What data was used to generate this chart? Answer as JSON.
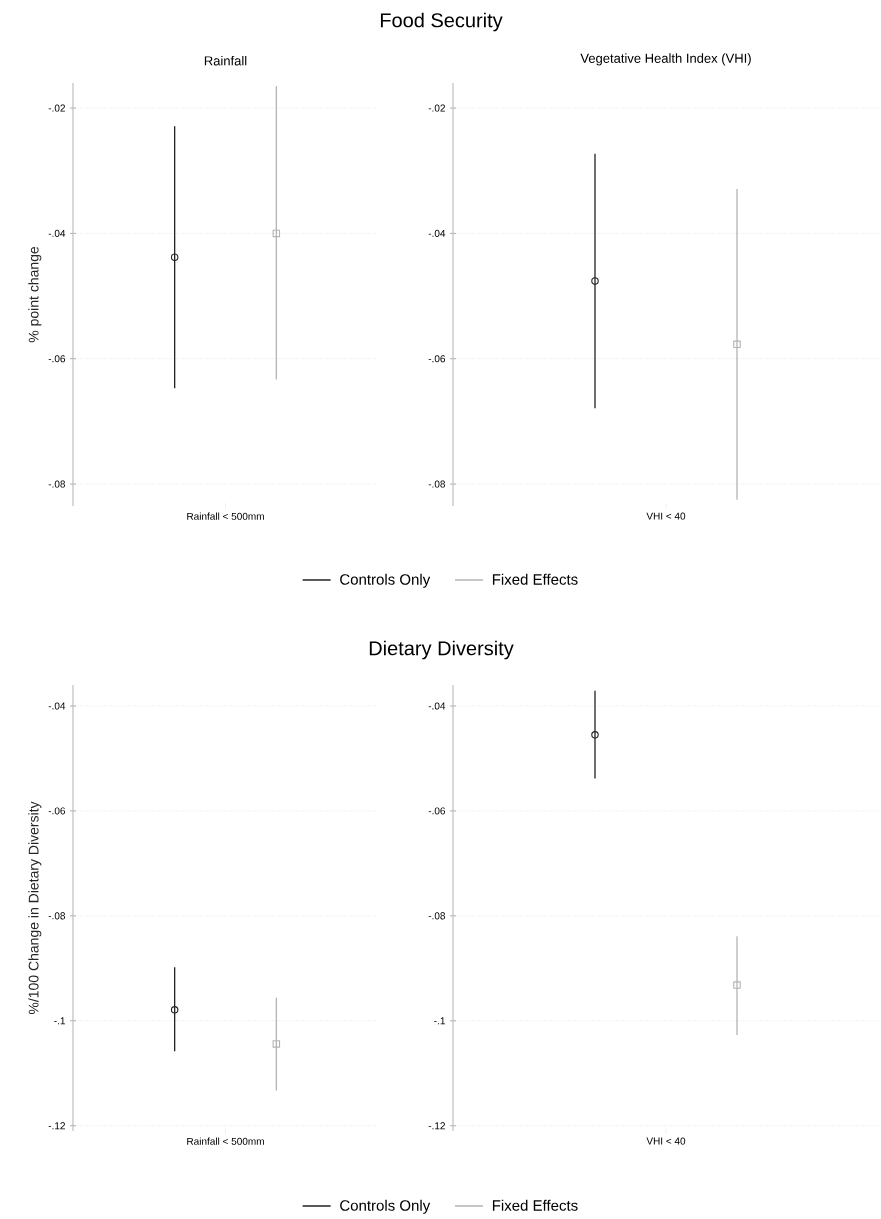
{
  "chart_data": [
    {
      "type": "scatter",
      "annotations": [
        "Food Security"
      ],
      "title": "Rainfall",
      "ylabel": "% point change",
      "categories": [
        "Rainfall < 500mm"
      ],
      "series": [
        {
          "name": "Controls Only",
          "color": "#222222",
          "marker": "circle",
          "values": [
            -0.0438
          ],
          "errors": [
            [
              -0.0647,
              -0.0229
            ]
          ]
        },
        {
          "name": "Fixed Effects",
          "color": "#b4b4b4",
          "marker": "square",
          "values": [
            -0.04
          ],
          "errors": [
            [
              -0.0633,
              -0.0165
            ]
          ]
        }
      ],
      "ylim": [
        -0.0835,
        -0.016
      ],
      "yticks": [
        {
          "value": -0.08,
          "label": "-.08"
        },
        {
          "value": -0.06,
          "label": "-.06"
        },
        {
          "value": -0.04,
          "label": "-.04"
        },
        {
          "value": -0.02,
          "label": "-.02"
        }
      ],
      "grid": "y",
      "legend": "bottom"
    },
    {
      "type": "scatter",
      "title": "Vegetative Health Index (VHI)",
      "categories": [
        "VHI < 40"
      ],
      "series": [
        {
          "color": "#222222",
          "marker": "circle",
          "values": [
            -0.0476
          ],
          "errors": [
            [
              -0.0679,
              -0.0273
            ]
          ]
        },
        {
          "color": "#b4b4b4",
          "marker": "square",
          "values": [
            -0.0577
          ],
          "errors": [
            [
              -0.0825,
              -0.0329
            ]
          ]
        }
      ],
      "ylim": [
        -0.0835,
        -0.016
      ],
      "yticks": [
        {
          "value": -0.08,
          "label": "-.08"
        },
        {
          "value": -0.06,
          "label": "-.06"
        },
        {
          "value": -0.04,
          "label": "-.04"
        },
        {
          "value": -0.02,
          "label": "-.02"
        }
      ],
      "grid": "y"
    },
    {
      "type": "scatter",
      "annotations": [
        "Dietary Diversity"
      ],
      "ylabel": "%/100 Change in Dietary Diversity",
      "categories": [
        "Rainfall < 500mm"
      ],
      "series": [
        {
          "name": "Controls Only",
          "color": "#222222",
          "marker": "circle",
          "values": [
            -0.0979
          ],
          "errors": [
            [
              -0.1058,
              -0.0898
            ]
          ]
        },
        {
          "name": "Fixed Effects",
          "color": "#b4b4b4",
          "marker": "square",
          "values": [
            -0.1044
          ],
          "errors": [
            [
              -0.1133,
              -0.0956
            ]
          ]
        }
      ],
      "ylim": [
        -0.121,
        -0.036
      ],
      "yticks": [
        {
          "value": -0.12,
          "label": "-.12"
        },
        {
          "value": -0.1,
          "label": "-.1"
        },
        {
          "value": -0.08,
          "label": "-.08"
        },
        {
          "value": -0.06,
          "label": "-.06"
        },
        {
          "value": -0.04,
          "label": "-.04"
        }
      ],
      "grid": "y",
      "legend": "bottom"
    },
    {
      "type": "scatter",
      "categories": [
        "VHI < 40"
      ],
      "series": [
        {
          "color": "#222222",
          "marker": "circle",
          "values": [
            -0.0455
          ],
          "errors": [
            [
              -0.0538,
              -0.0371
            ]
          ]
        },
        {
          "color": "#b4b4b4",
          "marker": "square",
          "values": [
            -0.0932
          ],
          "errors": [
            [
              -0.1027,
              -0.0839
            ]
          ]
        }
      ],
      "ylim": [
        -0.121,
        -0.036
      ],
      "yticks": [
        {
          "value": -0.12,
          "label": "-.12"
        },
        {
          "value": -0.1,
          "label": "-.1"
        },
        {
          "value": -0.08,
          "label": "-.08"
        },
        {
          "value": -0.06,
          "label": "-.06"
        },
        {
          "value": -0.04,
          "label": "-.04"
        }
      ],
      "grid": "y"
    }
  ]
}
